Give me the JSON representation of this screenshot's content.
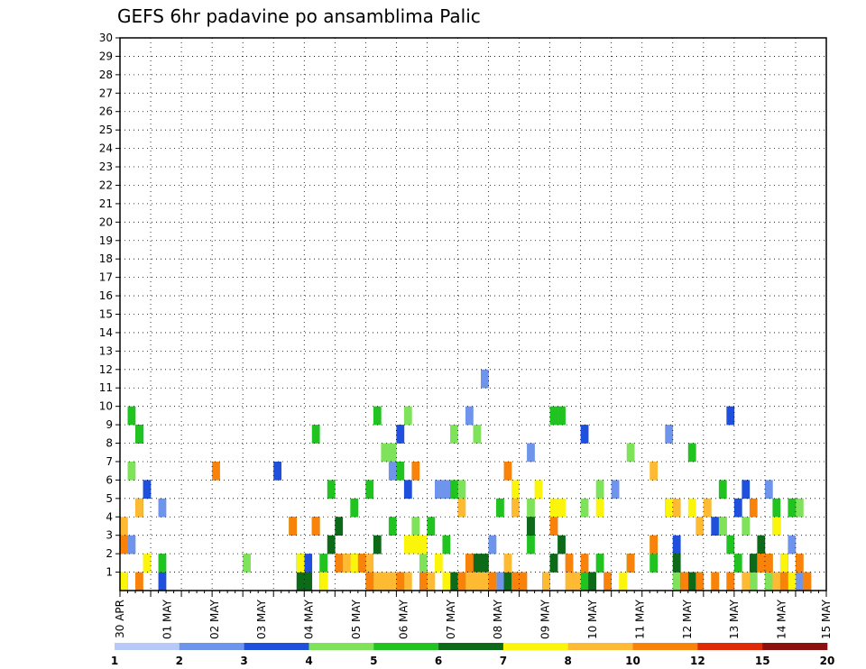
{
  "chart_data": {
    "type": "heatmap",
    "title": "GEFS 6hr padavine po ansamblima Palic",
    "xlabel": "",
    "ylabel": "",
    "x_tick_labels": [
      "30 APR",
      "01 MAY",
      "02 MAY",
      "03 MAY",
      "04 MAY",
      "05 MAY",
      "06 MAY",
      "07 MAY",
      "08 MAY",
      "09 MAY",
      "10 MAY",
      "11 MAY",
      "12 MAY",
      "13 MAY",
      "14 MAY",
      "15 MAY"
    ],
    "y_tick_labels": [
      1,
      2,
      3,
      4,
      5,
      6,
      7,
      8,
      9,
      10,
      11,
      12,
      13,
      14,
      15,
      16,
      17,
      18,
      19,
      20,
      21,
      22,
      23,
      24,
      25,
      26,
      27,
      28,
      29,
      30
    ],
    "x_unit": "6hr step",
    "ylim": [
      0,
      30
    ],
    "grid": true,
    "legend_placement": "bottom",
    "colorbar": {
      "labels": [
        "1",
        "2",
        "3",
        "4",
        "5",
        "6",
        "7",
        "8",
        "10",
        "12",
        "15",
        "20"
      ],
      "colors": [
        "#b7c9f7",
        "#6f94eb",
        "#1f4fdd",
        "#7ee35a",
        "#20c320",
        "#0c6a18",
        "#fbf50b",
        "#fdba32",
        "#f9820a",
        "#df2a08",
        "#8b1010"
      ]
    },
    "cells": [
      [
        0,
        3,
        0
      ],
      [
        1,
        3,
        1
      ],
      [
        5,
        5,
        1
      ],
      [
        35,
        7,
        1
      ],
      [
        41,
        6,
        1
      ],
      [
        42,
        6,
        1
      ],
      [
        45,
        10,
        1
      ],
      [
        47,
        12,
        1
      ],
      [
        48,
        3,
        1
      ],
      [
        49,
        1,
        1
      ],
      [
        53,
        8,
        1
      ],
      [
        64,
        6,
        1
      ],
      [
        71,
        9,
        1
      ],
      [
        84,
        6,
        1
      ],
      [
        87,
        3,
        1
      ],
      [
        88,
        1,
        1
      ],
      [
        0,
        1,
        2
      ],
      [
        2,
        9,
        2
      ],
      [
        3,
        6,
        2
      ],
      [
        5,
        1,
        2
      ],
      [
        20,
        7,
        2
      ],
      [
        23,
        2,
        2
      ],
      [
        24,
        2,
        2
      ],
      [
        36,
        9,
        2
      ],
      [
        37,
        6,
        2
      ],
      [
        53,
        4,
        2
      ],
      [
        60,
        9,
        2
      ],
      [
        71,
        5,
        2
      ],
      [
        72,
        3,
        2
      ],
      [
        77,
        4,
        2
      ],
      [
        78,
        4,
        2
      ],
      [
        79,
        10,
        2
      ],
      [
        80,
        5,
        2
      ],
      [
        81,
        6,
        2
      ],
      [
        84,
        2,
        2
      ],
      [
        85,
        4,
        2
      ],
      [
        86,
        2,
        2
      ],
      [
        0,
        1,
        3
      ],
      [
        1,
        7,
        3
      ],
      [
        16,
        2,
        3
      ],
      [
        29,
        2,
        3
      ],
      [
        31,
        2,
        3
      ],
      [
        34,
        8,
        3
      ],
      [
        35,
        8,
        3
      ],
      [
        37,
        10,
        3
      ],
      [
        38,
        4,
        3
      ],
      [
        39,
        2,
        3
      ],
      [
        43,
        9,
        3
      ],
      [
        44,
        6,
        3
      ],
      [
        46,
        9,
        3
      ],
      [
        53,
        5,
        3
      ],
      [
        60,
        5,
        3
      ],
      [
        62,
        6,
        3
      ],
      [
        66,
        8,
        3
      ],
      [
        69,
        3,
        3
      ],
      [
        72,
        1,
        3
      ],
      [
        76,
        5,
        3
      ],
      [
        78,
        4,
        3
      ],
      [
        81,
        4,
        3
      ],
      [
        82,
        1,
        3
      ],
      [
        84,
        1,
        3
      ],
      [
        88,
        5,
        3
      ],
      [
        1,
        10,
        4
      ],
      [
        2,
        9,
        4
      ],
      [
        5,
        2,
        4
      ],
      [
        22,
        4,
        4
      ],
      [
        23,
        2,
        4
      ],
      [
        25,
        9,
        4
      ],
      [
        26,
        2,
        4
      ],
      [
        27,
        6,
        4
      ],
      [
        30,
        5,
        4
      ],
      [
        31,
        2,
        4
      ],
      [
        32,
        6,
        4
      ],
      [
        33,
        10,
        4
      ],
      [
        34,
        1,
        4
      ],
      [
        35,
        4,
        4
      ],
      [
        36,
        7,
        4
      ],
      [
        40,
        4,
        4
      ],
      [
        42,
        3,
        4
      ],
      [
        43,
        6,
        4
      ],
      [
        49,
        5,
        4
      ],
      [
        53,
        3,
        4
      ],
      [
        56,
        10,
        4
      ],
      [
        57,
        10,
        4
      ],
      [
        60,
        1,
        4
      ],
      [
        61,
        1,
        4
      ],
      [
        62,
        2,
        4
      ],
      [
        66,
        2,
        4
      ],
      [
        69,
        2,
        4
      ],
      [
        74,
        8,
        4
      ],
      [
        75,
        1,
        4
      ],
      [
        78,
        6,
        4
      ],
      [
        79,
        3,
        4
      ],
      [
        80,
        2,
        4
      ],
      [
        85,
        5,
        4
      ],
      [
        86,
        1,
        4
      ],
      [
        87,
        5,
        4
      ],
      [
        2,
        5,
        5
      ],
      [
        23,
        1,
        5
      ],
      [
        24,
        1,
        5
      ],
      [
        25,
        4,
        5
      ],
      [
        26,
        1,
        5
      ],
      [
        27,
        3,
        5
      ],
      [
        28,
        4,
        5
      ],
      [
        30,
        2,
        5
      ],
      [
        33,
        3,
        5
      ],
      [
        35,
        1,
        5
      ],
      [
        43,
        1,
        5
      ],
      [
        44,
        1,
        5
      ],
      [
        46,
        2,
        5
      ],
      [
        47,
        2,
        5
      ],
      [
        50,
        1,
        5
      ],
      [
        51,
        1,
        5
      ],
      [
        53,
        4,
        5
      ],
      [
        55,
        1,
        5
      ],
      [
        56,
        2,
        5
      ],
      [
        57,
        3,
        5
      ],
      [
        59,
        1,
        5
      ],
      [
        61,
        1,
        5
      ],
      [
        72,
        2,
        5
      ],
      [
        73,
        1,
        5
      ],
      [
        74,
        1,
        5
      ],
      [
        82,
        2,
        5
      ],
      [
        83,
        3,
        5
      ],
      [
        0,
        1,
        6
      ],
      [
        3,
        2,
        6
      ],
      [
        23,
        2,
        6
      ],
      [
        26,
        1,
        6
      ],
      [
        30,
        2,
        6
      ],
      [
        31,
        2,
        6
      ],
      [
        33,
        1,
        6
      ],
      [
        34,
        1,
        6
      ],
      [
        37,
        3,
        6
      ],
      [
        38,
        3,
        6
      ],
      [
        39,
        3,
        6
      ],
      [
        40,
        1,
        6
      ],
      [
        41,
        2,
        6
      ],
      [
        42,
        1,
        6
      ],
      [
        44,
        1,
        6
      ],
      [
        48,
        1,
        6
      ],
      [
        51,
        6,
        6
      ],
      [
        54,
        6,
        6
      ],
      [
        56,
        5,
        6
      ],
      [
        57,
        5,
        6
      ],
      [
        62,
        5,
        6
      ],
      [
        65,
        1,
        6
      ],
      [
        71,
        5,
        6
      ],
      [
        74,
        5,
        6
      ],
      [
        77,
        1,
        6
      ],
      [
        83,
        2,
        6
      ],
      [
        84,
        2,
        6
      ],
      [
        85,
        4,
        6
      ],
      [
        86,
        2,
        6
      ],
      [
        87,
        1,
        6
      ],
      [
        89,
        1,
        6
      ],
      [
        0,
        4,
        7
      ],
      [
        2,
        5,
        7
      ],
      [
        29,
        2,
        7
      ],
      [
        31,
        2,
        7
      ],
      [
        32,
        2,
        7
      ],
      [
        33,
        1,
        7
      ],
      [
        34,
        1,
        7
      ],
      [
        35,
        1,
        7
      ],
      [
        36,
        1,
        7
      ],
      [
        37,
        1,
        7
      ],
      [
        40,
        1,
        7
      ],
      [
        44,
        5,
        7
      ],
      [
        45,
        1,
        7
      ],
      [
        46,
        1,
        7
      ],
      [
        47,
        1,
        7
      ],
      [
        50,
        2,
        7
      ],
      [
        51,
        5,
        7
      ],
      [
        55,
        1,
        7
      ],
      [
        58,
        1,
        7
      ],
      [
        59,
        1,
        7
      ],
      [
        69,
        7,
        7
      ],
      [
        72,
        5,
        7
      ],
      [
        75,
        4,
        7
      ],
      [
        76,
        5,
        7
      ],
      [
        77,
        1,
        7
      ],
      [
        79,
        1,
        7
      ],
      [
        81,
        1,
        7
      ],
      [
        85,
        1,
        7
      ],
      [
        86,
        1,
        7
      ],
      [
        89,
        1,
        7
      ],
      [
        0,
        3,
        8
      ],
      [
        2,
        1,
        8
      ],
      [
        12,
        7,
        8
      ],
      [
        22,
        4,
        8
      ],
      [
        25,
        4,
        8
      ],
      [
        28,
        2,
        8
      ],
      [
        31,
        2,
        8
      ],
      [
        32,
        1,
        8
      ],
      [
        36,
        1,
        8
      ],
      [
        38,
        7,
        8
      ],
      [
        39,
        1,
        8
      ],
      [
        44,
        1,
        8
      ],
      [
        45,
        2,
        8
      ],
      [
        48,
        1,
        8
      ],
      [
        50,
        7,
        8
      ],
      [
        51,
        1,
        8
      ],
      [
        52,
        1,
        8
      ],
      [
        56,
        4,
        8
      ],
      [
        58,
        2,
        8
      ],
      [
        60,
        2,
        8
      ],
      [
        63,
        1,
        8
      ],
      [
        66,
        2,
        8
      ],
      [
        69,
        3,
        8
      ],
      [
        73,
        1,
        8
      ],
      [
        75,
        1,
        8
      ],
      [
        77,
        1,
        8
      ],
      [
        79,
        1,
        8
      ],
      [
        82,
        5,
        8
      ],
      [
        83,
        2,
        8
      ],
      [
        84,
        2,
        8
      ],
      [
        86,
        1,
        8
      ],
      [
        88,
        2,
        8
      ],
      [
        89,
        1,
        8
      ]
    ]
  }
}
